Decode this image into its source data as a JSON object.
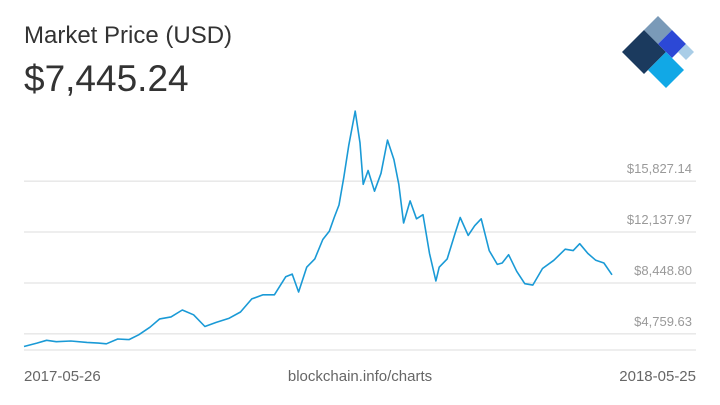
{
  "header": {
    "title": "Market Price (USD)",
    "price": "$7,445.24"
  },
  "footer": {
    "start": "2017-05-26",
    "source": "blockchain.info/charts",
    "end": "2018-05-25"
  },
  "logo": {
    "icon": "blockchain-logo-icon",
    "colors": [
      "#7a9ab8",
      "#1b3a5e",
      "#2c48d6",
      "#11a8e6",
      "#a9cde7"
    ]
  },
  "chart_data": {
    "type": "line",
    "x_range": [
      "2017-05-26",
      "2018-05-25"
    ],
    "yticks": [
      {
        "value": 4759.63,
        "label": "$4,759.63"
      },
      {
        "value": 8448.8,
        "label": "$8,448.80"
      },
      {
        "value": 12137.97,
        "label": "$12,137.97"
      },
      {
        "value": 15827.14,
        "label": "$15,827.14"
      }
    ],
    "grid": true,
    "color": "#1a9ad6",
    "series": [
      {
        "x": [
          "2017-05-26",
          "2017-06-03",
          "2017-06-09",
          "2017-06-15",
          "2017-06-24",
          "2017-07-04",
          "2017-07-11",
          "2017-07-16",
          "2017-07-23",
          "2017-07-30",
          "2017-08-05",
          "2017-08-12",
          "2017-08-18",
          "2017-08-25",
          "2017-09-01",
          "2017-09-08",
          "2017-09-15",
          "2017-09-22",
          "2017-09-30",
          "2017-10-07",
          "2017-10-14",
          "2017-10-21",
          "2017-10-28",
          "2017-11-04",
          "2017-11-08",
          "2017-11-12",
          "2017-11-17",
          "2017-11-22",
          "2017-11-27",
          "2017-12-01",
          "2017-12-04",
          "2017-12-07",
          "2017-12-10",
          "2017-12-13",
          "2017-12-17",
          "2017-12-20",
          "2017-12-22",
          "2017-12-25",
          "2017-12-29",
          "2018-01-02",
          "2018-01-06",
          "2018-01-10",
          "2018-01-13",
          "2018-01-16",
          "2018-01-20",
          "2018-01-24",
          "2018-01-28",
          "2018-02-01",
          "2018-02-05",
          "2018-02-07",
          "2018-02-12",
          "2018-02-17",
          "2018-02-20",
          "2018-02-25",
          "2018-03-01",
          "2018-03-05",
          "2018-03-10",
          "2018-03-15",
          "2018-03-18",
          "2018-03-22",
          "2018-03-27",
          "2018-04-01",
          "2018-04-06",
          "2018-04-12",
          "2018-04-19",
          "2018-04-26",
          "2018-05-01",
          "2018-05-05",
          "2018-05-10",
          "2018-05-15",
          "2018-05-20",
          "2018-05-25"
        ],
        "y": [
          2250,
          2500,
          2700,
          2600,
          2650,
          2550,
          2500,
          2450,
          2800,
          2750,
          3100,
          3650,
          4250,
          4400,
          4900,
          4550,
          3700,
          4000,
          4300,
          4750,
          5700,
          6000,
          6000,
          7300,
          7500,
          6200,
          8000,
          8600,
          10000,
          10600,
          11600,
          12500,
          14500,
          16800,
          19300,
          17000,
          14000,
          15000,
          13500,
          14800,
          17200,
          15800,
          14000,
          11200,
          12800,
          11500,
          11800,
          9000,
          7000,
          8000,
          8600,
          10500,
          11600,
          10300,
          11000,
          11500,
          9200,
          8200,
          8300,
          8900,
          7700,
          6800,
          6700,
          7900,
          8500,
          9300,
          9200,
          9700,
          9000,
          8500,
          8300,
          7445.24
        ]
      }
    ]
  }
}
